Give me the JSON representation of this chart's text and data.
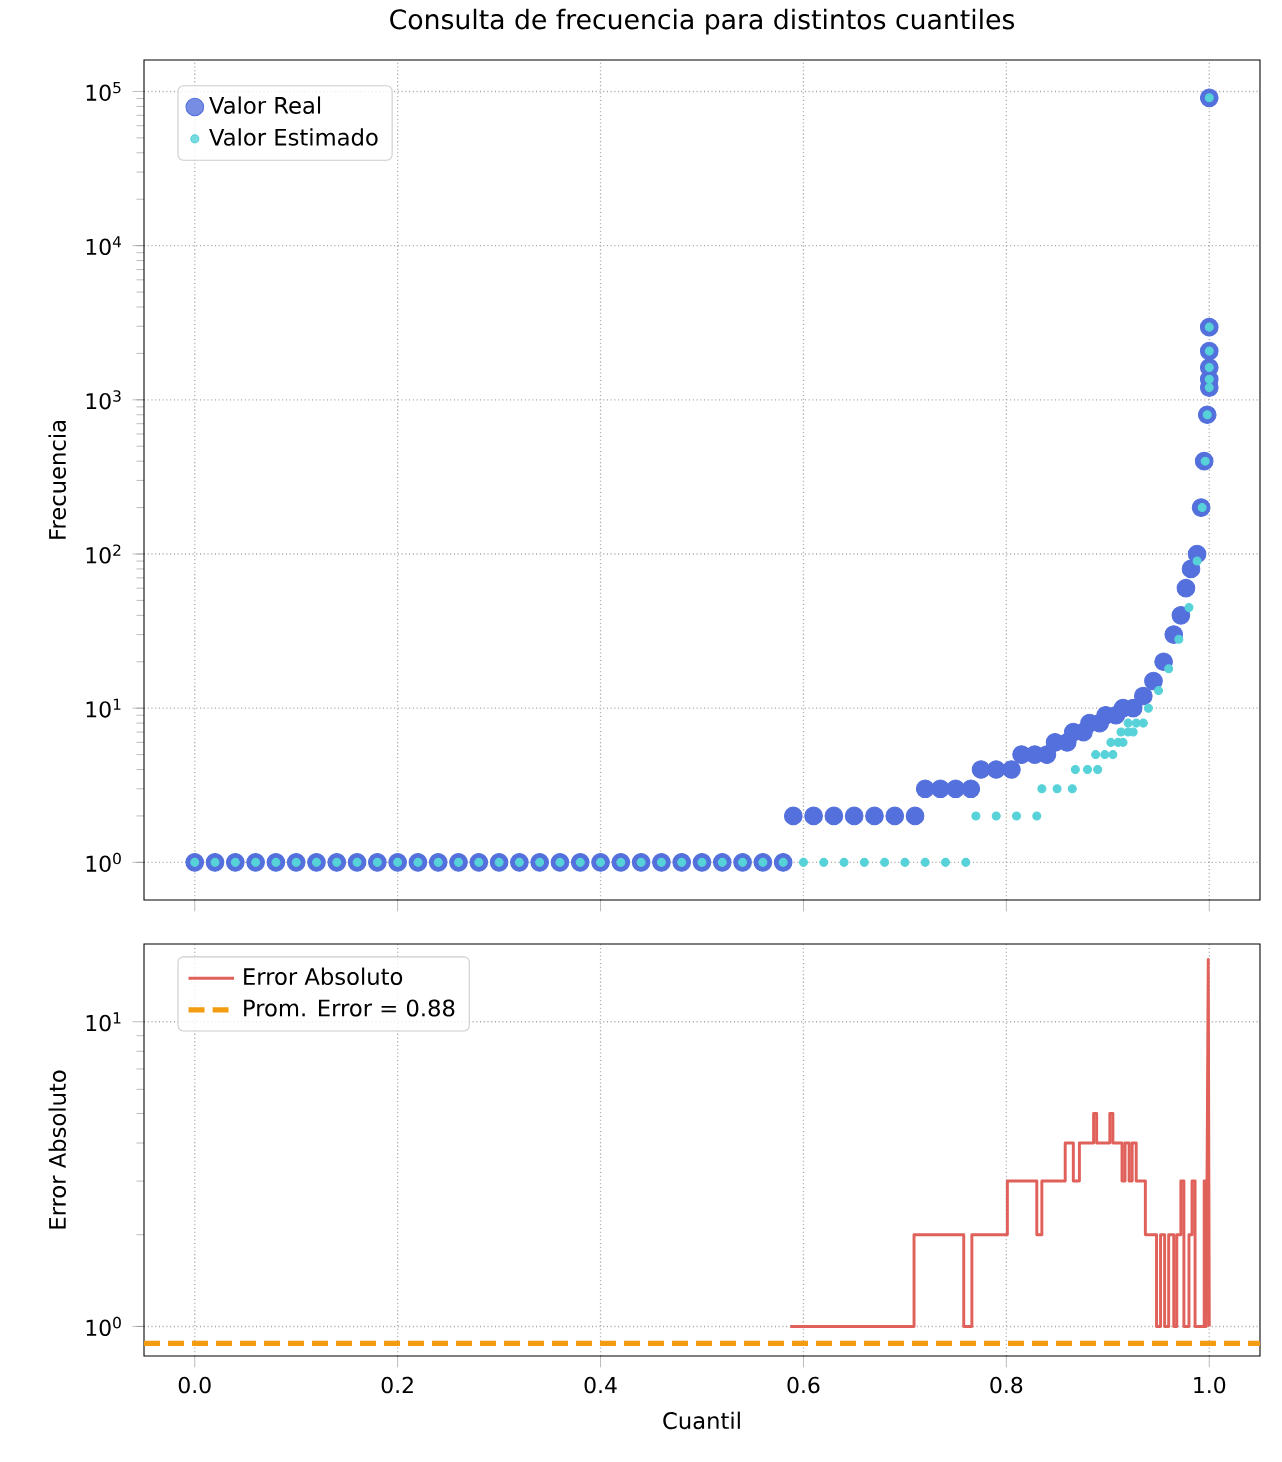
{
  "chart_data": [
    {
      "type": "scatter",
      "title": "Consulta de frecuencia para distintos cuantiles",
      "ylabel": "Frecuencia",
      "log": "y",
      "grid": true,
      "legend": "top left",
      "tick_labels": "y",
      "xlim": [
        -0.05,
        1.05
      ],
      "ylim": [
        0.57,
        160000
      ],
      "xticks": [
        0,
        0.2,
        0.4,
        0.6,
        0.8,
        1
      ],
      "yticks": [
        {
          "value": 1,
          "label": "10$^{0}$"
        },
        {
          "value": 10,
          "label": "10$^{1}$"
        },
        {
          "value": 100,
          "label": "10$^{2}$"
        },
        {
          "value": 1000,
          "label": "10$^{3}$"
        },
        {
          "value": 10000,
          "label": "10$^{4}$"
        },
        {
          "value": 100000,
          "label": "10$^{5}$"
        }
      ],
      "series": [
        {
          "name": "Valor Real",
          "color": "#5470dc",
          "marker": "circle",
          "x": [
            0,
            0.02,
            0.04,
            0.06,
            0.08,
            0.1,
            0.12,
            0.14,
            0.16,
            0.18,
            0.2,
            0.22,
            0.24,
            0.26,
            0.28,
            0.3,
            0.32,
            0.34,
            0.36,
            0.38,
            0.4,
            0.42,
            0.44,
            0.46,
            0.48,
            0.5,
            0.52,
            0.54,
            0.56,
            0.58,
            0.59,
            0.61,
            0.63,
            0.65,
            0.67,
            0.69,
            0.71,
            0.72,
            0.735,
            0.75,
            0.765,
            0.775,
            0.79,
            0.805,
            0.815,
            0.828,
            0.84,
            0.848,
            0.86,
            0.866,
            0.876,
            0.882,
            0.892,
            0.898,
            0.908,
            0.915,
            0.925,
            0.935,
            0.945,
            0.955,
            0.965,
            0.972,
            0.977,
            0.982,
            0.988,
            0.992,
            0.995,
            0.998,
            1,
            1,
            1,
            1,
            1,
            1
          ],
          "values": [
            1,
            1,
            1,
            1,
            1,
            1,
            1,
            1,
            1,
            1,
            1,
            1,
            1,
            1,
            1,
            1,
            1,
            1,
            1,
            1,
            1,
            1,
            1,
            1,
            1,
            1,
            1,
            1,
            1,
            1,
            2,
            2,
            2,
            2,
            2,
            2,
            2,
            3,
            3,
            3,
            3,
            4,
            4,
            4,
            5,
            5,
            5,
            6,
            6,
            7,
            7,
            8,
            8,
            9,
            9,
            10,
            10,
            12,
            15,
            20,
            30,
            40,
            60,
            80,
            100,
            200,
            400,
            800,
            1200,
            1360,
            1620,
            2070,
            2960,
            91000
          ]
        },
        {
          "name": "Valor Estimado",
          "color": "#56d2d8",
          "marker": "circle",
          "x": [
            0,
            0.02,
            0.04,
            0.06,
            0.08,
            0.1,
            0.12,
            0.14,
            0.16,
            0.18,
            0.2,
            0.22,
            0.24,
            0.26,
            0.28,
            0.3,
            0.32,
            0.34,
            0.36,
            0.38,
            0.4,
            0.42,
            0.44,
            0.46,
            0.48,
            0.5,
            0.52,
            0.54,
            0.56,
            0.58,
            0.6,
            0.62,
            0.64,
            0.66,
            0.68,
            0.7,
            0.72,
            0.74,
            0.76,
            0.77,
            0.79,
            0.81,
            0.83,
            0.835,
            0.85,
            0.865,
            0.868,
            0.88,
            0.89,
            0.888,
            0.897,
            0.905,
            0.903,
            0.91,
            0.915,
            0.913,
            0.92,
            0.925,
            0.92,
            0.928,
            0.935,
            0.94,
            0.95,
            0.96,
            0.97,
            0.98,
            0.988,
            0.993,
            0.996,
            0.998,
            1,
            1,
            1,
            1,
            1,
            1
          ],
          "values": [
            1,
            1,
            1,
            1,
            1,
            1,
            1,
            1,
            1,
            1,
            1,
            1,
            1,
            1,
            1,
            1,
            1,
            1,
            1,
            1,
            1,
            1,
            1,
            1,
            1,
            1,
            1,
            1,
            1,
            1,
            1,
            1,
            1,
            1,
            1,
            1,
            1,
            1,
            1,
            2,
            2,
            2,
            2,
            3,
            3,
            3,
            4,
            4,
            4,
            5,
            5,
            5,
            6,
            6,
            6,
            7,
            7,
            7,
            8,
            8,
            8,
            10,
            13,
            18,
            28,
            45,
            90,
            200,
            400,
            800,
            1200,
            1360,
            1620,
            2070,
            2960,
            91000
          ]
        }
      ]
    },
    {
      "type": "line",
      "xlabel": "Cuantil",
      "ylabel": "Error Absoluto",
      "log": "y",
      "grid": true,
      "legend": "top left",
      "xlim": [
        -0.05,
        1.05
      ],
      "ylim": [
        0.8,
        18
      ],
      "xticks": [
        {
          "value": 0,
          "label": "0.0"
        },
        {
          "value": 0.2,
          "label": "0.2"
        },
        {
          "value": 0.4,
          "label": "0.4"
        },
        {
          "value": 0.6,
          "label": "0.6"
        },
        {
          "value": 0.8,
          "label": "0.8"
        },
        {
          "value": 1,
          "label": "1.0"
        }
      ],
      "yticks": [
        {
          "value": 1,
          "label": "10$^{0}$"
        },
        {
          "value": 10,
          "label": "10$^{1}$"
        }
      ],
      "series": [
        {
          "name": "Error Absoluto",
          "color": "#e0605a",
          "marker": "none",
          "x": [
            0.587,
            0.709,
            0.709,
            0.758,
            0.758,
            0.766,
            0.766,
            0.801,
            0.801,
            0.83,
            0.83,
            0.835,
            0.835,
            0.858,
            0.858,
            0.866,
            0.866,
            0.872,
            0.872,
            0.886,
            0.886,
            0.889,
            0.889,
            0.902,
            0.902,
            0.905,
            0.905,
            0.914,
            0.914,
            0.917,
            0.917,
            0.921,
            0.921,
            0.924,
            0.924,
            0.928,
            0.928,
            0.937,
            0.937,
            0.948,
            0.948,
            0.952,
            0.952,
            0.956,
            0.956,
            0.96,
            0.96,
            0.965,
            0.965,
            0.968,
            0.968,
            0.972,
            0.972,
            0.975,
            0.975,
            0.98,
            0.98,
            0.983,
            0.983,
            0.986,
            0.986,
            0.995,
            0.995,
            0.997,
            0.997,
            0.999,
            1.0
          ],
          "values": [
            1,
            1,
            2,
            2,
            1,
            1,
            2,
            2,
            3,
            3,
            2,
            2,
            3,
            3,
            4,
            4,
            3,
            3,
            4,
            4,
            5,
            5,
            4,
            4,
            5,
            5,
            4,
            4,
            3,
            3,
            4,
            4,
            3,
            3,
            4,
            4,
            3,
            3,
            2,
            2,
            1,
            1,
            2,
            2,
            1,
            1,
            2,
            2,
            1,
            1,
            2,
            2,
            3,
            3,
            1,
            1,
            2,
            2,
            3,
            3,
            1,
            1,
            3,
            3,
            1,
            16,
            1
          ]
        }
      ],
      "ref_lines": [
        {
          "axis": "y",
          "value": 0.88,
          "label": "Prom. Error = 0.88",
          "color": "#f39c12",
          "line_style": "dashed"
        }
      ]
    }
  ]
}
